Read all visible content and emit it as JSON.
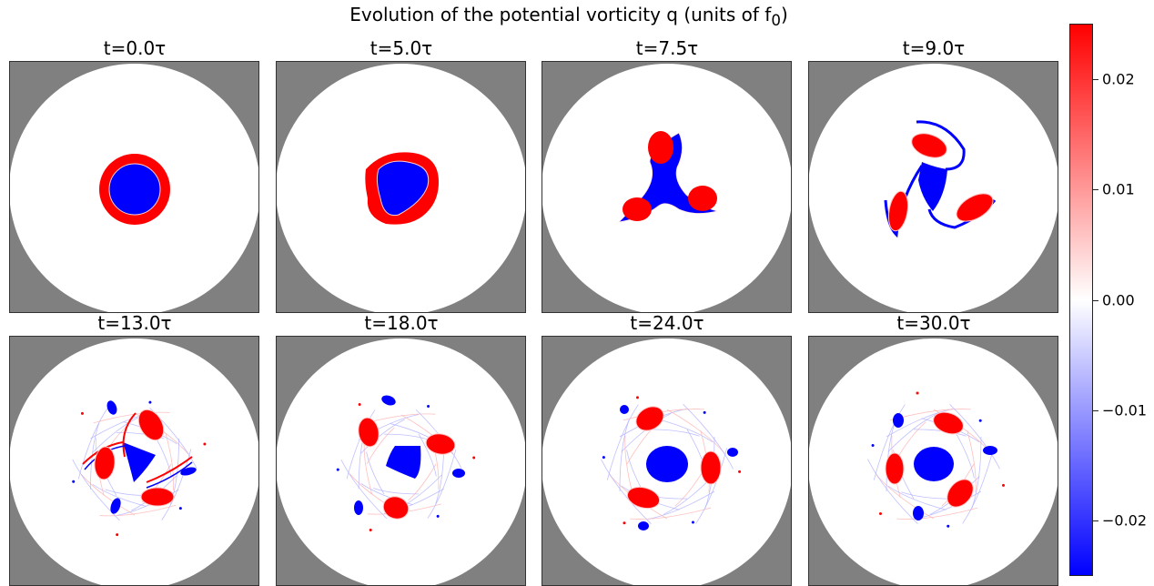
{
  "chart_data": {
    "type": "heatmap",
    "title": "Evolution of the potential vorticity q (units of f",
    "title_sub": "0",
    "title_end": ")",
    "panels": [
      {
        "label": "t=0.0τ",
        "stage": 0
      },
      {
        "label": "t=5.0τ",
        "stage": 1
      },
      {
        "label": "t=7.5τ",
        "stage": 2
      },
      {
        "label": "t=9.0τ",
        "stage": 3
      },
      {
        "label": "t=13.0τ",
        "stage": 4
      },
      {
        "label": "t=18.0τ",
        "stage": 5
      },
      {
        "label": "t=24.0τ",
        "stage": 6
      },
      {
        "label": "t=30.0τ",
        "stage": 7
      }
    ],
    "colorbar": {
      "vmin": -0.025,
      "vmax": 0.025,
      "ticks": [
        0.02,
        0.01,
        0.0,
        -0.01,
        -0.02
      ],
      "tick_labels": [
        "0.02",
        "0.01",
        "0.00",
        "−0.01",
        "−0.02"
      ],
      "colormap": "bwr"
    },
    "colors": {
      "positive": "#ff0000",
      "negative": "#0000ff",
      "background": "#808080",
      "zero": "#ffffff"
    }
  }
}
